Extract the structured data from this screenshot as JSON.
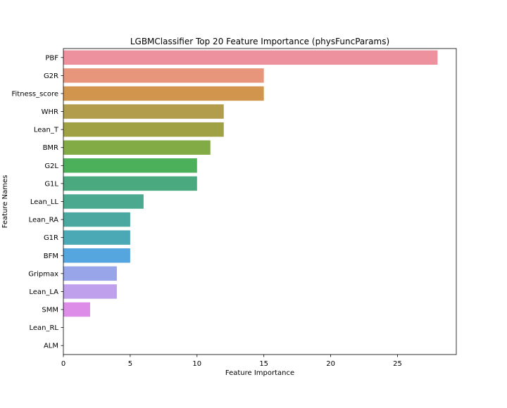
{
  "chart_data": {
    "type": "bar",
    "orientation": "horizontal",
    "title": "LGBMClassifier Top 20 Feature Importance (physFuncParams)",
    "xlabel": "Feature Importance",
    "ylabel": "Feature Names",
    "xlim": [
      0,
      29.4
    ],
    "xticks": [
      0,
      5,
      10,
      15,
      20,
      25
    ],
    "grid": false,
    "categories": [
      "PBF",
      "G2R",
      "Fitness_score",
      "WHR",
      "Lean_T",
      "BMR",
      "G2L",
      "G1L",
      "Lean_LL",
      "Lean_RA",
      "G1R",
      "BFM",
      "Gripmax",
      "Lean_LA",
      "SMM",
      "Lean_RL",
      "ALM"
    ],
    "values": [
      28,
      15,
      15,
      12,
      12,
      11,
      10,
      10,
      6,
      5,
      5,
      5,
      4,
      4,
      2,
      0,
      0
    ],
    "colors": [
      "#ee919f",
      "#e8967b",
      "#d2954e",
      "#b29d4d",
      "#a0a044",
      "#82aa45",
      "#4caf5a",
      "#4aa97e",
      "#4aa98f",
      "#4aa8a1",
      "#4ba8b5",
      "#55a6de",
      "#98a5e8",
      "#bea0ec",
      "#dd8ce8",
      "#e98fcf",
      "#ee93c2"
    ]
  }
}
